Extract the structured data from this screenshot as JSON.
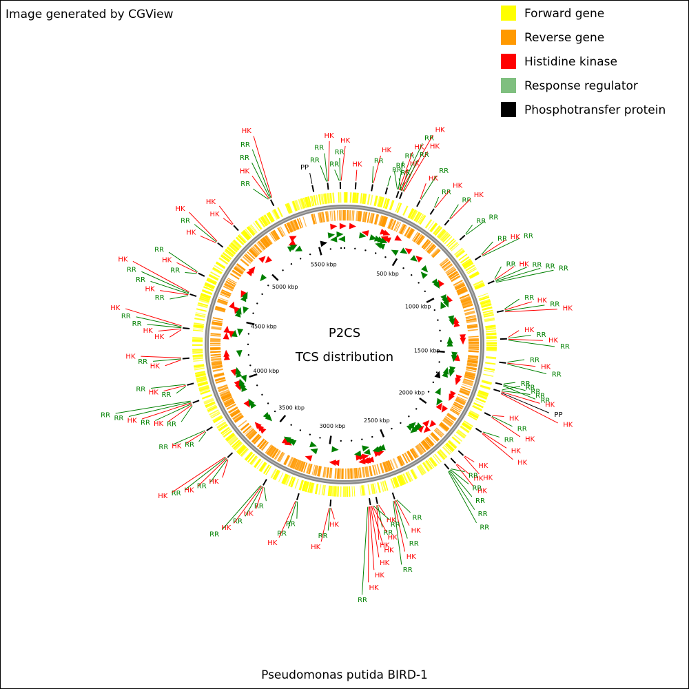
{
  "header": {
    "credit": "Image generated by CGView"
  },
  "legend": [
    {
      "name": "Forward gene",
      "color": "#ffff00"
    },
    {
      "name": "Reverse gene",
      "color": "#ff9900"
    },
    {
      "name": "Histidine kinase",
      "color": "#ff0000"
    },
    {
      "name": "Response regulator",
      "color": "#7fbf7f"
    },
    {
      "name": "Phosphotransfer protein",
      "color": "#000000"
    }
  ],
  "map": {
    "title": "P2CS",
    "subtitle": "TCS distribution",
    "organism": "Pseudomonas putida BIRD-1",
    "xlim": [
      0,
      5732
    ],
    "xticks": [
      {
        "value": 500,
        "label": "500 kbp"
      },
      {
        "value": 1000,
        "label": "1000 kbp"
      },
      {
        "value": 1500,
        "label": "1500 kbp"
      },
      {
        "value": 2000,
        "label": "2000 kbp"
      },
      {
        "value": 2500,
        "label": "2500 kbp"
      },
      {
        "value": 3000,
        "label": "3000 kbp"
      },
      {
        "value": 3500,
        "label": "3500 kbp"
      },
      {
        "value": 4000,
        "label": "4000 kbp"
      },
      {
        "value": 4500,
        "label": "4500 kbp"
      },
      {
        "value": 5000,
        "label": "5000 kbp"
      },
      {
        "value": 5500,
        "label": "5500 kbp"
      }
    ],
    "label_colors": {
      "HK": "#ff0000",
      "RR": "#008000",
      "PP": "#000000"
    },
    "clusters": [
      {
        "kbp": 64,
        "labels": [
          "HK"
        ]
      },
      {
        "kbp": 159,
        "labels": [
          "RR",
          "HK"
        ]
      },
      {
        "kbp": 243,
        "labels": [
          "RR"
        ]
      },
      {
        "kbp": 310,
        "labels": [
          "RR",
          "RR",
          "HK",
          "RR",
          "HK"
        ]
      },
      {
        "kbp": 330,
        "labels": [
          "RR",
          "HK",
          "RR",
          "HK"
        ]
      },
      {
        "kbp": 441,
        "labels": [
          "HK",
          "RR"
        ]
      },
      {
        "kbp": 532,
        "labels": [
          "RR",
          "HK"
        ]
      },
      {
        "kbp": 637,
        "labels": [
          "RR",
          "HK"
        ]
      },
      {
        "kbp": 761,
        "labels": [
          "RR",
          "RR"
        ]
      },
      {
        "kbp": 908,
        "labels": [
          "RR",
          "HK",
          "RR"
        ]
      },
      {
        "kbp": 1067,
        "labels": [
          "RR",
          "HK",
          "RR",
          "RR",
          "RR"
        ]
      },
      {
        "kbp": 1242,
        "labels": [
          "RR",
          "HK",
          "RR",
          "HK"
        ]
      },
      {
        "kbp": 1401,
        "labels": [
          "HK",
          "RR",
          "HK",
          "RR"
        ]
      },
      {
        "kbp": 1537,
        "labels": [
          "RR",
          "HK",
          "RR"
        ]
      },
      {
        "kbp": 1660,
        "labels": [
          "RR",
          "RR",
          "RR"
        ]
      },
      {
        "kbp": 1700,
        "labels": [
          "RR",
          "RR",
          "HK",
          "PP",
          "HK"
        ]
      },
      {
        "kbp": 1847,
        "labels": [
          "HK",
          "RR",
          "HK"
        ]
      },
      {
        "kbp": 1952,
        "labels": [
          "RR",
          "HK",
          "HK"
        ]
      },
      {
        "kbp": 2118,
        "labels": [
          "HK",
          "HK"
        ]
      },
      {
        "kbp": 2180,
        "labels": [
          "HK",
          "HK"
        ]
      },
      {
        "kbp": 2230,
        "labels": [
          "RR",
          "RR",
          "RR",
          "RR",
          "RR"
        ]
      },
      {
        "kbp": 2580,
        "labels": [
          "RR",
          "HK",
          "RR",
          "HK",
          "RR"
        ]
      },
      {
        "kbp": 2680,
        "labels": [
          "HK",
          "RR",
          "HK"
        ]
      },
      {
        "kbp": 2720,
        "labels": [
          "RR",
          "HK",
          "HK",
          "HK",
          "HK",
          "HK",
          "RR"
        ]
      },
      {
        "kbp": 2946,
        "labels": [
          "HK",
          "RR",
          "HK"
        ]
      },
      {
        "kbp": 3137,
        "labels": [
          "RR",
          "RR",
          "HK"
        ]
      },
      {
        "kbp": 3344,
        "labels": [
          "RR",
          "HK",
          "RR",
          "HK",
          "RR"
        ]
      },
      {
        "kbp": 3598,
        "labels": [
          "HK",
          "RR",
          "HK",
          "RR",
          "HK"
        ]
      },
      {
        "kbp": 3790,
        "labels": [
          "RR",
          "HK",
          "RR"
        ]
      },
      {
        "kbp": 3964,
        "labels": [
          "RR",
          "HK",
          "RR",
          "HK",
          "RR",
          "RR"
        ]
      },
      {
        "kbp": 4069,
        "labels": [
          "RR",
          "HK",
          "RR"
        ]
      },
      {
        "kbp": 4219,
        "labels": [
          "HK",
          "RR",
          "HK"
        ]
      },
      {
        "kbp": 4392,
        "labels": [
          "HK",
          "HK",
          "RR",
          "RR",
          "HK"
        ]
      },
      {
        "kbp": 4586,
        "labels": [
          "RR",
          "HK",
          "RR",
          "RR",
          "HK"
        ]
      },
      {
        "kbp": 4713,
        "labels": [
          "RR",
          "HK",
          "RR"
        ]
      },
      {
        "kbp": 4915,
        "labels": [
          "HK",
          "RR",
          "HK"
        ]
      },
      {
        "kbp": 5048,
        "labels": [
          "HK",
          "HK"
        ]
      },
      {
        "kbp": 5302,
        "labels": [
          "RR",
          "HK",
          "RR",
          "RR",
          "HK"
        ]
      },
      {
        "kbp": 5550,
        "labels": [
          "PP"
        ]
      },
      {
        "kbp": 5637,
        "labels": [
          "RR",
          "RR",
          "HK"
        ]
      },
      {
        "kbp": 5708,
        "labels": [
          "RR",
          "RR",
          "HK"
        ]
      }
    ]
  }
}
